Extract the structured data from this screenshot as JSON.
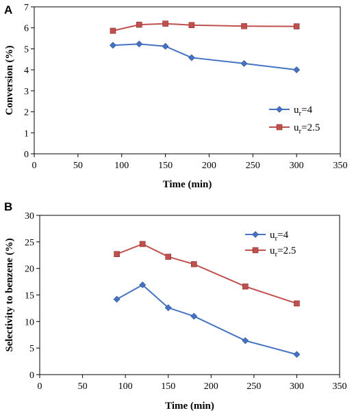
{
  "chart_data": [
    {
      "type": "line",
      "panel": "A",
      "xlabel": "Time (min)",
      "ylabel": "Conversion (%)",
      "xlim": [
        0,
        350
      ],
      "ylim": [
        0,
        7
      ],
      "xticks": [
        "0",
        "50",
        "100",
        "150",
        "200",
        "250",
        "300",
        "350"
      ],
      "yticks": [
        "0",
        "1",
        "2",
        "3",
        "4",
        "5",
        "6",
        "7"
      ],
      "grid": false,
      "legend_position": "right-middle",
      "series": [
        {
          "name_base": "u",
          "name_sub": "r",
          "name_suffix": "=4",
          "color": "#4472C4",
          "marker": "diamond",
          "x": [
            90,
            120,
            150,
            180,
            240,
            300
          ],
          "y": [
            5.17,
            5.23,
            5.12,
            4.58,
            4.3,
            4.0
          ]
        },
        {
          "name_base": "u",
          "name_sub": "r",
          "name_suffix": "=2.5",
          "color": "#C0504D",
          "marker": "square",
          "x": [
            90,
            120,
            150,
            180,
            240,
            300
          ],
          "y": [
            5.86,
            6.15,
            6.2,
            6.13,
            6.08,
            6.07
          ]
        }
      ]
    },
    {
      "type": "line",
      "panel": "B",
      "xlabel": "Time (min)",
      "ylabel": "Selectivity to benzene  (%)",
      "xlim": [
        0,
        350
      ],
      "ylim": [
        0,
        30
      ],
      "xticks": [
        "0",
        "50",
        "100",
        "150",
        "200",
        "250",
        "300",
        "350"
      ],
      "yticks": [
        "0",
        "5",
        "10",
        "15",
        "20",
        "25",
        "30"
      ],
      "grid": false,
      "legend_position": "top-right",
      "series": [
        {
          "name_base": "u",
          "name_sub": "r",
          "name_suffix": "=4",
          "color": "#4472C4",
          "marker": "diamond",
          "x": [
            90,
            120,
            150,
            180,
            240,
            300
          ],
          "y": [
            14.2,
            16.9,
            12.6,
            11.0,
            6.4,
            3.8
          ]
        },
        {
          "name_base": "u",
          "name_sub": "r",
          "name_suffix": "=2.5",
          "color": "#C0504D",
          "marker": "square",
          "x": [
            90,
            120,
            150,
            180,
            240,
            300
          ],
          "y": [
            22.7,
            24.6,
            22.2,
            20.8,
            16.6,
            13.4
          ]
        }
      ]
    }
  ]
}
